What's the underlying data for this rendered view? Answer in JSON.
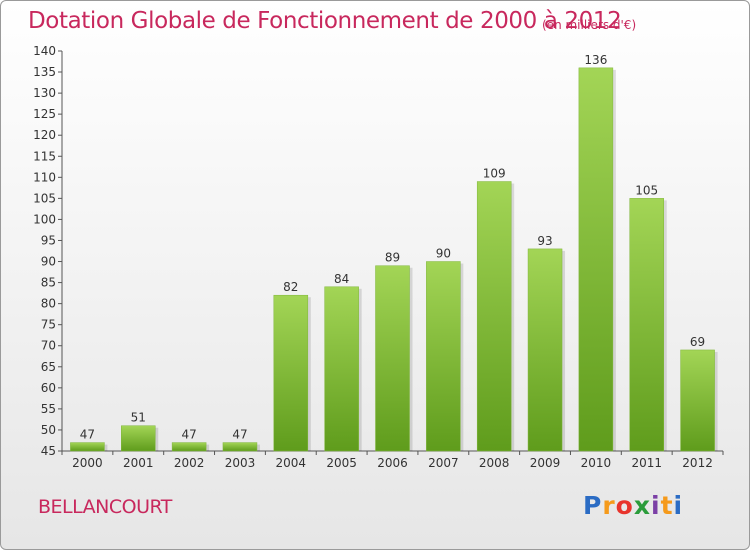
{
  "header": {
    "title": "Dotation Globale de Fonctionnement de 2000 à 2012",
    "subtitle": "(en milliers d'€)"
  },
  "footer": {
    "commune": "BELLANCOURT",
    "logo": [
      "P",
      "r",
      "o",
      "x",
      "i",
      "t",
      "i"
    ]
  },
  "colors": {
    "accent": "#c8285d",
    "bar_light": "#9ed14e",
    "bar_dark": "#5f9e1a",
    "logo": [
      "#2b6cc4",
      "#f59a1b",
      "#e8342c",
      "#2b9c3b",
      "#7b3fa6",
      "#f59a1b",
      "#2b6cc4"
    ]
  },
  "chart_data": {
    "type": "bar",
    "categories": [
      "2000",
      "2001",
      "2002",
      "2003",
      "2004",
      "2005",
      "2006",
      "2007",
      "2008",
      "2009",
      "2010",
      "2011",
      "2012"
    ],
    "values": [
      47,
      51,
      47,
      47,
      82,
      84,
      89,
      90,
      109,
      93,
      136,
      105,
      69
    ],
    "ylim": [
      45,
      140
    ],
    "yticks": [
      45,
      50,
      55,
      60,
      65,
      70,
      75,
      80,
      85,
      90,
      95,
      100,
      105,
      110,
      115,
      120,
      125,
      130,
      135,
      140
    ],
    "grid": false,
    "legend": "none"
  }
}
